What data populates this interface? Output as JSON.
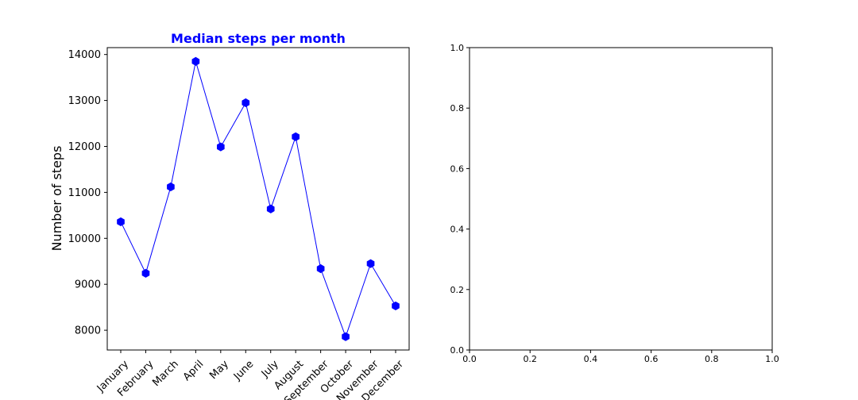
{
  "chart_data": [
    {
      "type": "line",
      "title": "Median steps per month",
      "title_color": "#0000ff",
      "xlabel": "",
      "ylabel": "Number of steps",
      "categories": [
        "January",
        "February",
        "March",
        "April",
        "May",
        "June",
        "July",
        "August",
        "September",
        "October",
        "November",
        "December"
      ],
      "series": [
        {
          "values": [
            10360,
            9240,
            11120,
            13850,
            11990,
            12950,
            10640,
            12210,
            9340,
            7860,
            9450,
            8530
          ],
          "color": "#0000ff",
          "marker": "hexagon"
        }
      ],
      "ylim": [
        7570,
        14150
      ],
      "yticks": [
        8000,
        9000,
        10000,
        11000,
        12000,
        13000,
        14000
      ],
      "ytick_labels": [
        "8000",
        "9000",
        "10000",
        "11000",
        "12000",
        "13000",
        "14000"
      ],
      "xtick_rotation": 45,
      "grid": false,
      "legend": "none"
    },
    {
      "type": "scatter",
      "title": "",
      "xlabel": "",
      "ylabel": "",
      "series": [],
      "xlim": [
        0,
        1
      ],
      "ylim": [
        0,
        1
      ],
      "xticks": [
        0.0,
        0.2,
        0.4,
        0.6,
        0.8,
        1.0
      ],
      "xtick_labels": [
        "0.0",
        "0.2",
        "0.4",
        "0.6",
        "0.8",
        "1.0"
      ],
      "yticks": [
        0.0,
        0.2,
        0.4,
        0.6,
        0.8,
        1.0
      ],
      "ytick_labels": [
        "0.0",
        "0.2",
        "0.4",
        "0.6",
        "0.8",
        "1.0"
      ],
      "grid": false,
      "legend": "none"
    }
  ]
}
